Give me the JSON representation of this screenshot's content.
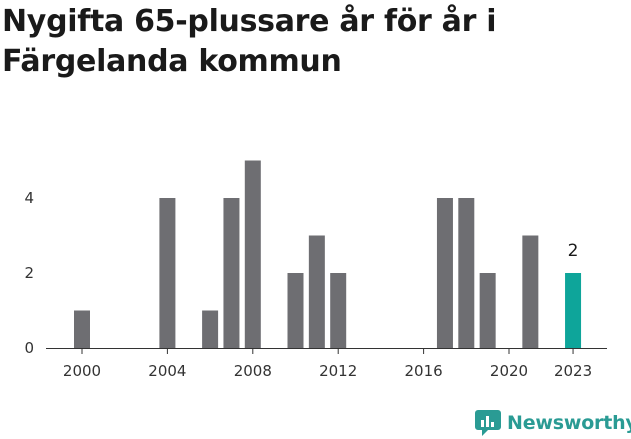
{
  "title": "Nygifta 65-plussare år för år i Färgelanda kommun",
  "brand": {
    "name": "Newsworthy",
    "icon": "newsworthy-logo-icon"
  },
  "colors": {
    "bar": "#6e6e72",
    "highlight": "#0ea59a",
    "axis": "#333333",
    "brand": "#2a9b94"
  },
  "chart_data": {
    "type": "bar",
    "title": "Nygifta 65-plussare år för år i Färgelanda kommun",
    "xlabel": "",
    "ylabel": "",
    "ylim": [
      0,
      5
    ],
    "grid": false,
    "x_ticks": [
      "2000",
      "2004",
      "2008",
      "2012",
      "2016",
      "2020",
      "2023"
    ],
    "y_ticks": [
      "0",
      "2",
      "4"
    ],
    "categories": [
      2000,
      2001,
      2002,
      2003,
      2004,
      2005,
      2006,
      2007,
      2008,
      2009,
      2010,
      2011,
      2012,
      2013,
      2014,
      2015,
      2016,
      2017,
      2018,
      2019,
      2020,
      2021,
      2022,
      2023
    ],
    "values": [
      1,
      0,
      0,
      0,
      4,
      0,
      1,
      4,
      5,
      0,
      2,
      3,
      2,
      0,
      0,
      0,
      0,
      4,
      4,
      2,
      0,
      3,
      0,
      2
    ],
    "highlight": {
      "category": 2023,
      "label": "2"
    }
  }
}
